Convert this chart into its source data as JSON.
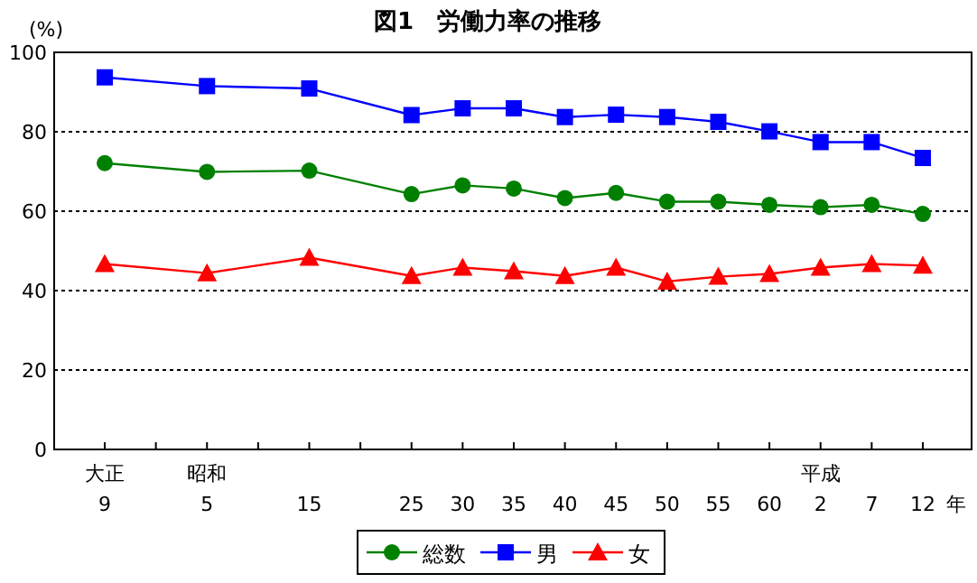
{
  "chart_data": {
    "type": "line",
    "title": "図1　労働力率の推移",
    "ylabel": "(%)",
    "xlabel": "年",
    "categories": [
      "大正\n9",
      null,
      "昭和\n5",
      null,
      "15",
      null,
      "25",
      "30",
      "35",
      "40",
      "45",
      "50",
      "55",
      "60",
      "平成\n2",
      "7",
      "12"
    ],
    "ylim": [
      0,
      100
    ],
    "yticks": [
      0,
      20,
      40,
      60,
      80,
      100
    ],
    "grid": "y",
    "line_style": "solid",
    "legend": "bottom",
    "series": [
      {
        "name": "総数",
        "color": "#008000",
        "marker": "circle",
        "values": [
          72.1,
          null,
          69.9,
          null,
          70.2,
          null,
          64.3,
          66.5,
          65.7,
          63.3,
          64.6,
          62.4,
          62.4,
          61.6,
          61.0,
          61.6,
          59.3
        ]
      },
      {
        "name": "男",
        "color": "#0000ff",
        "marker": "square",
        "values": [
          93.7,
          null,
          91.5,
          null,
          90.9,
          null,
          84.2,
          85.9,
          85.9,
          83.7,
          84.3,
          83.7,
          82.5,
          80.1,
          77.4,
          77.4,
          73.4
        ]
      },
      {
        "name": "女",
        "color": "#ff0000",
        "marker": "triangle",
        "values": [
          46.7,
          null,
          44.4,
          null,
          48.3,
          null,
          43.7,
          45.8,
          44.9,
          43.7,
          45.8,
          42.3,
          43.5,
          44.2,
          45.8,
          46.7,
          46.3
        ]
      }
    ]
  }
}
